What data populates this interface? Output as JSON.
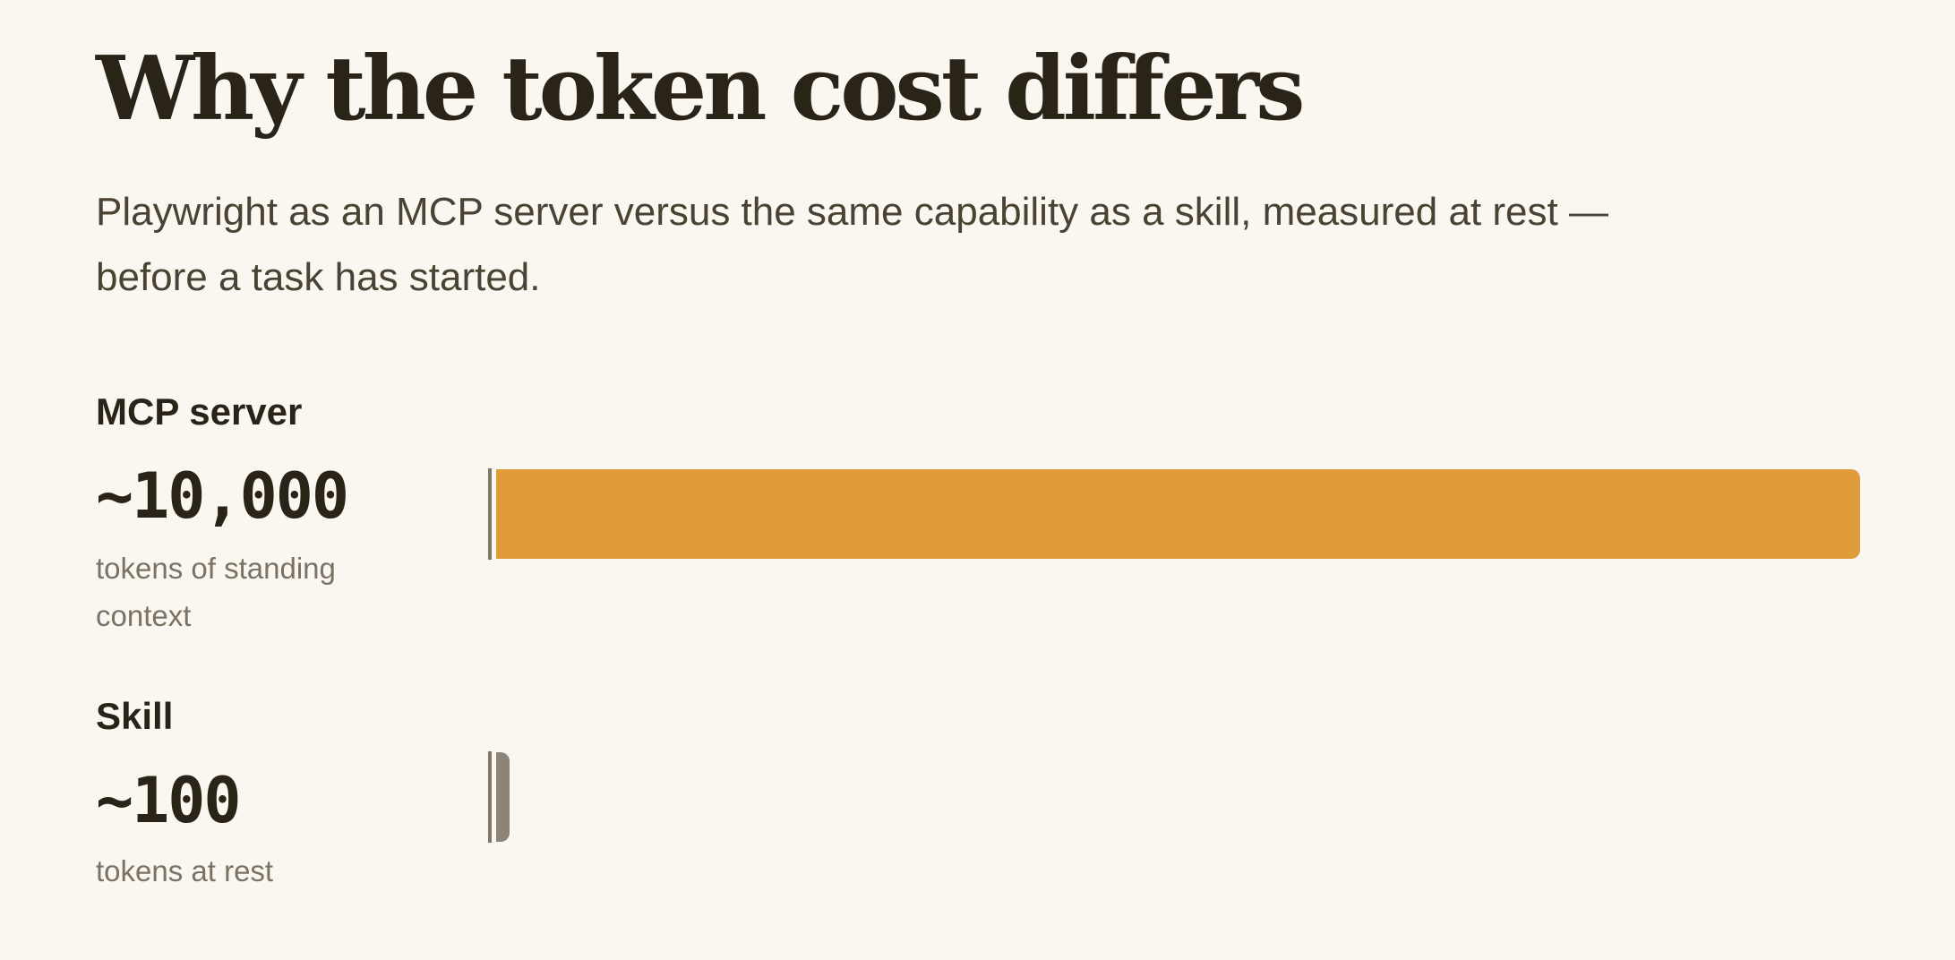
{
  "header": {
    "title": "Why the token cost differs",
    "subtitle": "Playwright as an MCP server versus the same capability as a skill, measured at rest — before a task has started."
  },
  "colors": {
    "background": "#faf7f1",
    "mcp_bar": "#e09c3b",
    "skill_bar": "#8c8478",
    "text": "#2a2317",
    "muted_text": "#7b7263"
  },
  "chart_data": {
    "type": "bar",
    "orientation": "horizontal",
    "categories": [
      "MCP server",
      "Skill"
    ],
    "values": [
      10000,
      100
    ],
    "value_labels": [
      "~10,000",
      "~100"
    ],
    "captions": [
      "tokens of standing context",
      "tokens at rest"
    ],
    "xlim": [
      0,
      10000
    ],
    "grid": false,
    "title": "",
    "xlabel": "",
    "ylabel": ""
  }
}
